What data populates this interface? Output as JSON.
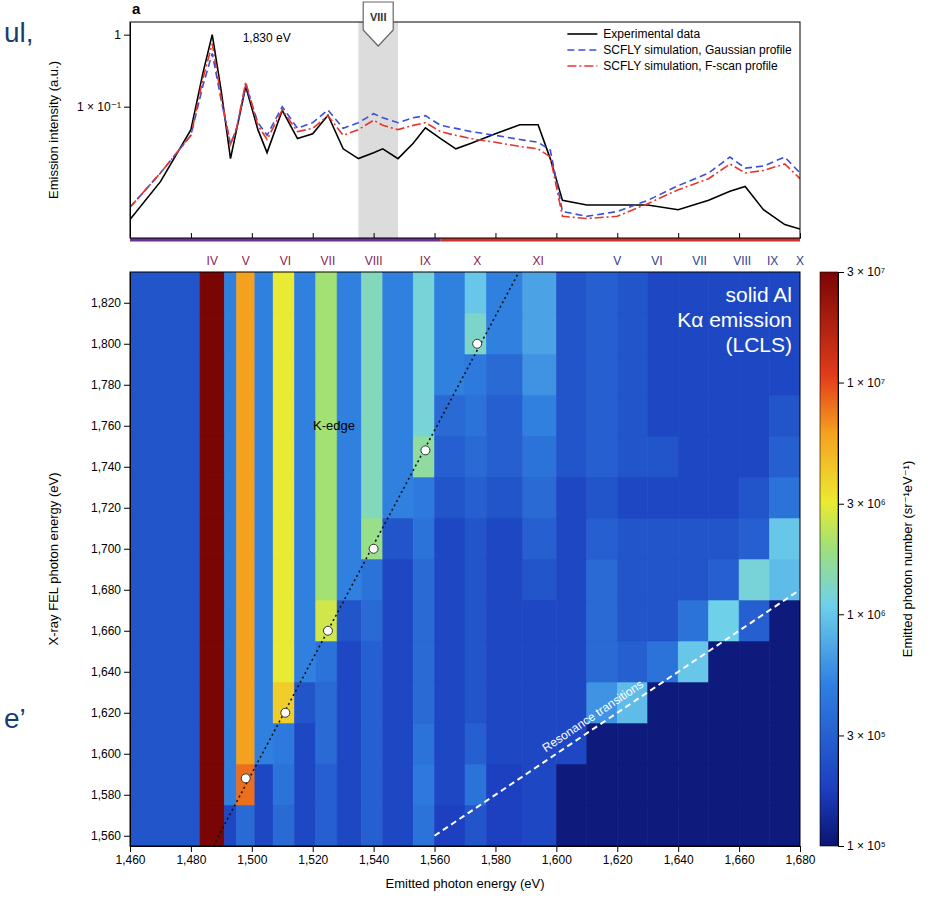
{
  "chart_data": [
    {
      "type": "line",
      "panel_label": "a",
      "x": [
        1460,
        1470,
        1480,
        1484,
        1487,
        1490,
        1493,
        1495,
        1498,
        1502,
        1505,
        1510,
        1515,
        1520,
        1525,
        1530,
        1535,
        1540,
        1543,
        1548,
        1553,
        1557,
        1562,
        1567,
        1572,
        1580,
        1588,
        1594,
        1598,
        1602,
        1610,
        1620,
        1630,
        1640,
        1650,
        1657,
        1662,
        1668,
        1675,
        1680
      ],
      "series": [
        {
          "name": "Experimental data",
          "color": "#000000",
          "line_style": "solid",
          "values": [
            0.0027,
            0.0091,
            0.048,
            0.3,
            1.0,
            0.16,
            0.019,
            0.048,
            0.19,
            0.048,
            0.023,
            0.089,
            0.036,
            0.042,
            0.076,
            0.026,
            0.019,
            0.023,
            0.026,
            0.019,
            0.031,
            0.051,
            0.036,
            0.026,
            0.031,
            0.042,
            0.056,
            0.056,
            0.019,
            0.005,
            0.0043,
            0.0043,
            0.0043,
            0.0037,
            0.005,
            0.0067,
            0.0078,
            0.0037,
            0.0023,
            0.002
          ]
        },
        {
          "name": "SCFLY simulation, Gaussian profile",
          "color": "#3b4fd8",
          "line_style": "dashed",
          "values": [
            0.004,
            0.012,
            0.04,
            0.2,
            0.55,
            0.12,
            0.03,
            0.05,
            0.2,
            0.06,
            0.04,
            0.1,
            0.05,
            0.06,
            0.09,
            0.05,
            0.06,
            0.08,
            0.07,
            0.06,
            0.07,
            0.075,
            0.055,
            0.05,
            0.045,
            0.04,
            0.035,
            0.032,
            0.025,
            0.0035,
            0.003,
            0.0035,
            0.005,
            0.008,
            0.012,
            0.02,
            0.014,
            0.015,
            0.02,
            0.012
          ]
        },
        {
          "name": "SCFLY simulation, F-scan profile",
          "color": "#e8352b",
          "line_style": "dashdot",
          "values": [
            0.004,
            0.012,
            0.04,
            0.25,
            0.75,
            0.13,
            0.03,
            0.05,
            0.22,
            0.055,
            0.035,
            0.09,
            0.045,
            0.05,
            0.075,
            0.04,
            0.048,
            0.065,
            0.055,
            0.048,
            0.055,
            0.06,
            0.045,
            0.04,
            0.036,
            0.032,
            0.028,
            0.026,
            0.02,
            0.003,
            0.0028,
            0.003,
            0.0045,
            0.007,
            0.01,
            0.016,
            0.012,
            0.013,
            0.016,
            0.01
          ]
        }
      ],
      "xlim": [
        1460,
        1680
      ],
      "xticks": [
        1460,
        1480,
        1500,
        1520,
        1540,
        1560,
        1580,
        1600,
        1620,
        1640,
        1660,
        1680
      ],
      "ylim": [
        0.0015,
        1.5
      ],
      "log": "y",
      "yticks": [
        1,
        {
          "value": 0.1,
          "label": "1 × 10⁻¹"
        }
      ],
      "ylabel": "Emission intensity (a.u.)",
      "tick_labels": "y",
      "legend": "upper right",
      "annotations": [
        {
          "text": "1,830 eV",
          "x": 1497,
          "y": 0.9
        }
      ],
      "highlight": {
        "x": [
          1535,
          1548
        ],
        "label": "VIII"
      },
      "region_bars": [
        {
          "from": 1460,
          "to": 1562,
          "color": "#6b2f8e"
        },
        {
          "from": 1562,
          "to": 1680,
          "color": "#c8322c"
        }
      ]
    },
    {
      "type": "heatmap",
      "xlim": [
        1460,
        1680
      ],
      "ylim": [
        1555,
        1835
      ],
      "xticks": [
        {
          "value": 1460,
          "label": "1,460"
        },
        {
          "value": 1480,
          "label": "1,480"
        },
        {
          "value": 1500,
          "label": "1,500"
        },
        {
          "value": 1520,
          "label": "1,520"
        },
        {
          "value": 1540,
          "label": "1,540"
        },
        {
          "value": 1560,
          "label": "1,560"
        },
        {
          "value": 1580,
          "label": "1,580"
        },
        {
          "value": 1600,
          "label": "1,600"
        },
        {
          "value": 1620,
          "label": "1,620"
        },
        {
          "value": 1640,
          "label": "1,640"
        },
        {
          "value": 1660,
          "label": "1,660"
        },
        {
          "value": 1680,
          "label": "1,680"
        }
      ],
      "yticks": [
        {
          "value": 1560,
          "label": "1,560"
        },
        {
          "value": 1580,
          "label": "1,580"
        },
        {
          "value": 1600,
          "label": "1,600"
        },
        {
          "value": 1620,
          "label": "1,620"
        },
        {
          "value": 1640,
          "label": "1,640"
        },
        {
          "value": 1660,
          "label": "1,660"
        },
        {
          "value": 1680,
          "label": "1,680"
        },
        {
          "value": 1700,
          "label": "1,700"
        },
        {
          "value": 1720,
          "label": "1,720"
        },
        {
          "value": 1740,
          "label": "1,740"
        },
        {
          "value": 1760,
          "label": "1,760"
        },
        {
          "value": 1780,
          "label": "1,780"
        },
        {
          "value": 1800,
          "label": "1,800"
        },
        {
          "value": 1820,
          "label": "1,820"
        }
      ],
      "xlabel": "Emitted photon energy (eV)",
      "ylabel": "X-ray FEL photon energy (eV)",
      "x_edges": [
        1460,
        1483,
        1491,
        1495,
        1501,
        1507,
        1514,
        1521,
        1528,
        1536,
        1543,
        1553,
        1560,
        1570,
        1577,
        1589,
        1600,
        1610,
        1620,
        1630,
        1640,
        1650,
        1660,
        1670,
        1680
      ],
      "y_edges": [
        1555,
        1575,
        1595,
        1615,
        1635,
        1655,
        1675,
        1695,
        1715,
        1735,
        1755,
        1775,
        1795,
        1815,
        1835
      ],
      "values": [
        [
          250000.0,
          30000000.0,
          200000.0,
          350000.0,
          200000.0,
          350000.0,
          200000.0,
          300000.0,
          200000.0,
          300000.0,
          200000.0,
          400000.0,
          180000.0,
          250000.0,
          180000.0,
          200000.0,
          110000.0,
          110000.0,
          110000.0,
          110000.0,
          110000.0,
          110000.0,
          110000.0,
          110000.0
        ],
        [
          250000.0,
          30000000.0,
          500000.0,
          8000000.0,
          200000.0,
          400000.0,
          200000.0,
          300000.0,
          200000.0,
          300000.0,
          200000.0,
          450000.0,
          200000.0,
          400000.0,
          180000.0,
          200000.0,
          110000.0,
          110000.0,
          110000.0,
          110000.0,
          110000.0,
          110000.0,
          110000.0,
          110000.0
        ],
        [
          250000.0,
          30000000.0,
          500000.0,
          6000000.0,
          500000.0,
          450000.0,
          200000.0,
          350000.0,
          200000.0,
          300000.0,
          200000.0,
          400000.0,
          200000.0,
          300000.0,
          200000.0,
          200000.0,
          200000.0,
          110000.0,
          110000.0,
          110000.0,
          110000.0,
          110000.0,
          110000.0,
          110000.0
        ],
        [
          250000.0,
          30000000.0,
          500000.0,
          6000000.0,
          500000.0,
          4000000.0,
          250000.0,
          350000.0,
          200000.0,
          300000.0,
          200000.0,
          350000.0,
          200000.0,
          250000.0,
          200000.0,
          200000.0,
          200000.0,
          600000.0,
          900000.0,
          110000.0,
          110000.0,
          110000.0,
          110000.0,
          110000.0
        ],
        [
          250000.0,
          30000000.0,
          500000.0,
          6000000.0,
          500000.0,
          3000000.0,
          500000.0,
          400000.0,
          200000.0,
          300000.0,
          200000.0,
          350000.0,
          200000.0,
          250000.0,
          200000.0,
          200000.0,
          200000.0,
          350000.0,
          300000.0,
          400000.0,
          1000000.0,
          110000.0,
          110000.0,
          110000.0
        ],
        [
          250000.0,
          30000000.0,
          500000.0,
          6000000.0,
          500000.0,
          3000000.0,
          500000.0,
          2600000.0,
          250000.0,
          350000.0,
          200000.0,
          350000.0,
          200000.0,
          250000.0,
          200000.0,
          200000.0,
          200000.0,
          350000.0,
          250000.0,
          250000.0,
          400000.0,
          1100000.0,
          300000.0,
          110000.0
        ],
        [
          250000.0,
          30000000.0,
          500000.0,
          6000000.0,
          500000.0,
          3000000.0,
          500000.0,
          2000000.0,
          500000.0,
          400000.0,
          200000.0,
          350000.0,
          200000.0,
          250000.0,
          200000.0,
          250000.0,
          200000.0,
          350000.0,
          250000.0,
          250000.0,
          250000.0,
          300000.0,
          1200000.0,
          900000.0
        ],
        [
          250000.0,
          30000000.0,
          500000.0,
          6000000.0,
          500000.0,
          3000000.0,
          500000.0,
          2000000.0,
          500000.0,
          1800000.0,
          250000.0,
          400000.0,
          200000.0,
          250000.0,
          200000.0,
          300000.0,
          200000.0,
          300000.0,
          250000.0,
          250000.0,
          250000.0,
          250000.0,
          300000.0,
          1000000.0
        ],
        [
          250000.0,
          30000000.0,
          500000.0,
          6000000.0,
          500000.0,
          3000000.0,
          500000.0,
          2000000.0,
          500000.0,
          1400000.0,
          500000.0,
          450000.0,
          250000.0,
          300000.0,
          250000.0,
          350000.0,
          200000.0,
          250000.0,
          200000.0,
          200000.0,
          200000.0,
          200000.0,
          250000.0,
          400000.0
        ],
        [
          250000.0,
          30000000.0,
          500000.0,
          6000000.0,
          500000.0,
          3000000.0,
          500000.0,
          2000000.0,
          500000.0,
          1400000.0,
          500000.0,
          1600000.0,
          300000.0,
          350000.0,
          300000.0,
          400000.0,
          250000.0,
          300000.0,
          250000.0,
          250000.0,
          200000.0,
          200000.0,
          200000.0,
          300000.0
        ],
        [
          250000.0,
          30000000.0,
          500000.0,
          6000000.0,
          500000.0,
          3000000.0,
          500000.0,
          2000000.0,
          500000.0,
          1400000.0,
          500000.0,
          1200000.0,
          350000.0,
          400000.0,
          300000.0,
          500000.0,
          250000.0,
          300000.0,
          250000.0,
          200000.0,
          200000.0,
          200000.0,
          200000.0,
          250000.0
        ],
        [
          250000.0,
          30000000.0,
          500000.0,
          6000000.0,
          500000.0,
          3000000.0,
          500000.0,
          2000000.0,
          500000.0,
          1400000.0,
          500000.0,
          1200000.0,
          500000.0,
          450000.0,
          350000.0,
          600000.0,
          250000.0,
          300000.0,
          250000.0,
          200000.0,
          200000.0,
          200000.0,
          200000.0,
          200000.0
        ],
        [
          250000.0,
          30000000.0,
          500000.0,
          6000000.0,
          500000.0,
          3000000.0,
          500000.0,
          2000000.0,
          500000.0,
          1400000.0,
          500000.0,
          1200000.0,
          500000.0,
          1300000.0,
          500000.0,
          700000.0,
          250000.0,
          300000.0,
          250000.0,
          200000.0,
          200000.0,
          200000.0,
          200000.0,
          200000.0
        ],
        [
          250000.0,
          30000000.0,
          500000.0,
          6000000.0,
          500000.0,
          3000000.0,
          500000.0,
          2000000.0,
          500000.0,
          1400000.0,
          500000.0,
          1200000.0,
          500000.0,
          1000000.0,
          500000.0,
          700000.0,
          250000.0,
          300000.0,
          250000.0,
          200000.0,
          200000.0,
          200000.0,
          200000.0,
          200000.0
        ]
      ],
      "colorbar": {
        "label": "Emitted photon number (sr⁻¹eV⁻¹)",
        "range": [
          100000.0,
          30000000.0
        ],
        "ticks": [
          {
            "value": 100000.0,
            "label": "1 × 10⁵"
          },
          {
            "value": 300000.0,
            "label": "3 × 10⁵"
          },
          {
            "value": 1000000.0,
            "label": "1 × 10⁶"
          },
          {
            "value": 3000000.0,
            "label": "3 × 10⁶"
          },
          {
            "value": 10000000.0,
            "label": "1 × 10⁷"
          },
          {
            "value": 30000000.0,
            "label": "3 × 10⁷"
          }
        ]
      },
      "kalpha_labels": {
        "color": "#8c1d4f",
        "labels": [
          "IV",
          "V",
          "VI",
          "VII",
          "VIII",
          "IX",
          "X",
          "XI"
        ],
        "x": [
          1487,
          1498,
          1511,
          1525,
          1540,
          1557,
          1574,
          1594
        ]
      },
      "resonance_labels": {
        "color": "#2b3f93",
        "labels": [
          "V",
          "VI",
          "VII",
          "VIII",
          "IX",
          "X"
        ],
        "x": [
          1620,
          1633,
          1647,
          1661,
          1671,
          1680
        ]
      },
      "kedge_line": {
        "x": [
          1487.3,
          1587.7
        ],
        "y": [
          1555,
          1835
        ]
      },
      "kedge_points": {
        "x": [
          1498,
          1511,
          1525,
          1540,
          1557,
          1574
        ],
        "y": [
          1588,
          1620,
          1660,
          1700,
          1748,
          1800
        ]
      },
      "resonance_line": {
        "x": [
          1560,
          1680
        ],
        "y": [
          1560,
          1680
        ],
        "label": "Resonance transitions"
      },
      "annotations": [
        {
          "text": "K-edge",
          "x": 1527,
          "y": 1760
        }
      ],
      "text_box": [
        "solid Al",
        "Kα emission",
        "(LCLS)"
      ]
    }
  ],
  "page_fragments": [
    "ul,",
    "e’"
  ]
}
